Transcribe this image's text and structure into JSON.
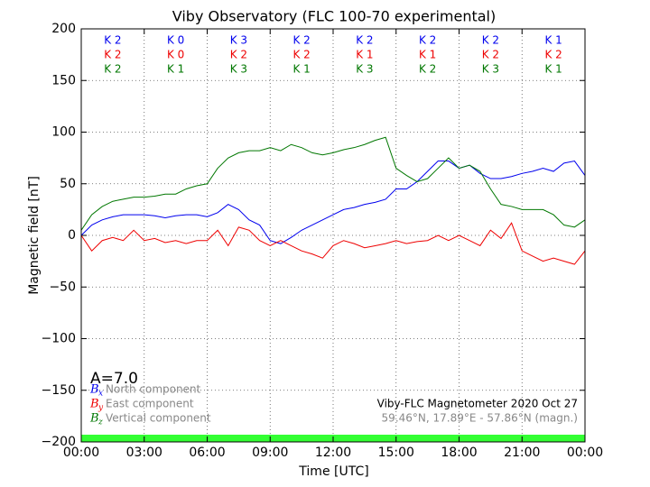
{
  "chart_data": {
    "type": "line",
    "title": "Viby Observatory (FLC 100-70 experimental)",
    "x_label": "Time [UTC]",
    "y_label": "Magnetic field [nT]",
    "annotations": {
      "a_index": "A=7.0",
      "station": "Viby-FLC Magnetometer 2020 Oct 27",
      "coordinates": "59.46°N, 17.89°E - 57.86°N (magn.)"
    },
    "xlim": [
      0,
      24
    ],
    "xticks": [
      {
        "value": 0,
        "label": "00:00"
      },
      {
        "value": 3,
        "label": "03:00"
      },
      {
        "value": 6,
        "label": "06:00"
      },
      {
        "value": 9,
        "label": "09:00"
      },
      {
        "value": 12,
        "label": "12:00"
      },
      {
        "value": 15,
        "label": "15:00"
      },
      {
        "value": 18,
        "label": "18:00"
      },
      {
        "value": 21,
        "label": "21:00"
      },
      {
        "value": 24,
        "label": "00:00"
      }
    ],
    "ylim": [
      -200,
      200
    ],
    "yticks": [
      {
        "value": -200,
        "label": "−200"
      },
      {
        "value": -150,
        "label": "−150"
      },
      {
        "value": -100,
        "label": "−100"
      },
      {
        "value": -50,
        "label": "−50"
      },
      0,
      50,
      100,
      150,
      200
    ],
    "grid": true,
    "x": [
      0,
      0.5,
      1,
      1.5,
      2,
      2.5,
      3,
      3.5,
      4,
      4.5,
      5,
      5.5,
      6,
      6.5,
      7,
      7.5,
      8,
      8.5,
      9,
      9.5,
      10,
      10.5,
      11,
      11.5,
      12,
      12.5,
      13,
      13.5,
      14,
      14.5,
      15,
      15.5,
      16,
      16.5,
      17,
      17.5,
      18,
      18.5,
      19,
      19.5,
      20,
      20.5,
      21,
      21.5,
      22,
      22.5,
      23,
      23.5,
      24
    ],
    "series": [
      {
        "name": "North component",
        "symbol": "B",
        "subscript": "x",
        "color": "#0000ee",
        "k_labels": [
          "K 2",
          "K 0",
          "K 3",
          "K 2",
          "K 2",
          "K 2",
          "K 2",
          "K 1"
        ],
        "values": [
          0,
          10,
          15,
          18,
          20,
          20,
          20,
          19,
          17,
          19,
          20,
          20,
          18,
          22,
          30,
          25,
          15,
          10,
          -5,
          -8,
          -2,
          5,
          10,
          15,
          20,
          25,
          27,
          30,
          32,
          35,
          45,
          45,
          52,
          62,
          72,
          72,
          65,
          68,
          60,
          55,
          55,
          57,
          60,
          62,
          65,
          62,
          70,
          72,
          58
        ]
      },
      {
        "name": "East component",
        "symbol": "B",
        "subscript": "y",
        "color": "#ee0000",
        "k_labels": [
          "K 2",
          "K 0",
          "K 2",
          "K 2",
          "K 1",
          "K 1",
          "K 2",
          "K 2"
        ],
        "values": [
          0,
          -15,
          -5,
          -2,
          -5,
          5,
          -5,
          -3,
          -7,
          -5,
          -8,
          -5,
          -5,
          5,
          -10,
          8,
          5,
          -5,
          -10,
          -5,
          -10,
          -15,
          -18,
          -22,
          -10,
          -5,
          -8,
          -12,
          -10,
          -8,
          -5,
          -8,
          -6,
          -5,
          0,
          -5,
          0,
          -5,
          -10,
          5,
          -3,
          12,
          -15,
          -20,
          -25,
          -22,
          -25,
          -28,
          -15
        ]
      },
      {
        "name": "Vertical component",
        "symbol": "B",
        "subscript": "z",
        "color": "#007700",
        "k_labels": [
          "K 2",
          "K 1",
          "K 3",
          "K 1",
          "K 3",
          "K 2",
          "K 3",
          "K 1"
        ],
        "values": [
          5,
          20,
          28,
          33,
          35,
          37,
          37,
          38,
          40,
          40,
          45,
          48,
          50,
          65,
          75,
          80,
          82,
          82,
          85,
          82,
          88,
          85,
          80,
          78,
          80,
          83,
          85,
          88,
          92,
          95,
          65,
          58,
          52,
          55,
          65,
          75,
          65,
          68,
          62,
          45,
          30,
          28,
          25,
          25,
          25,
          20,
          10,
          8,
          15
        ]
      }
    ]
  }
}
